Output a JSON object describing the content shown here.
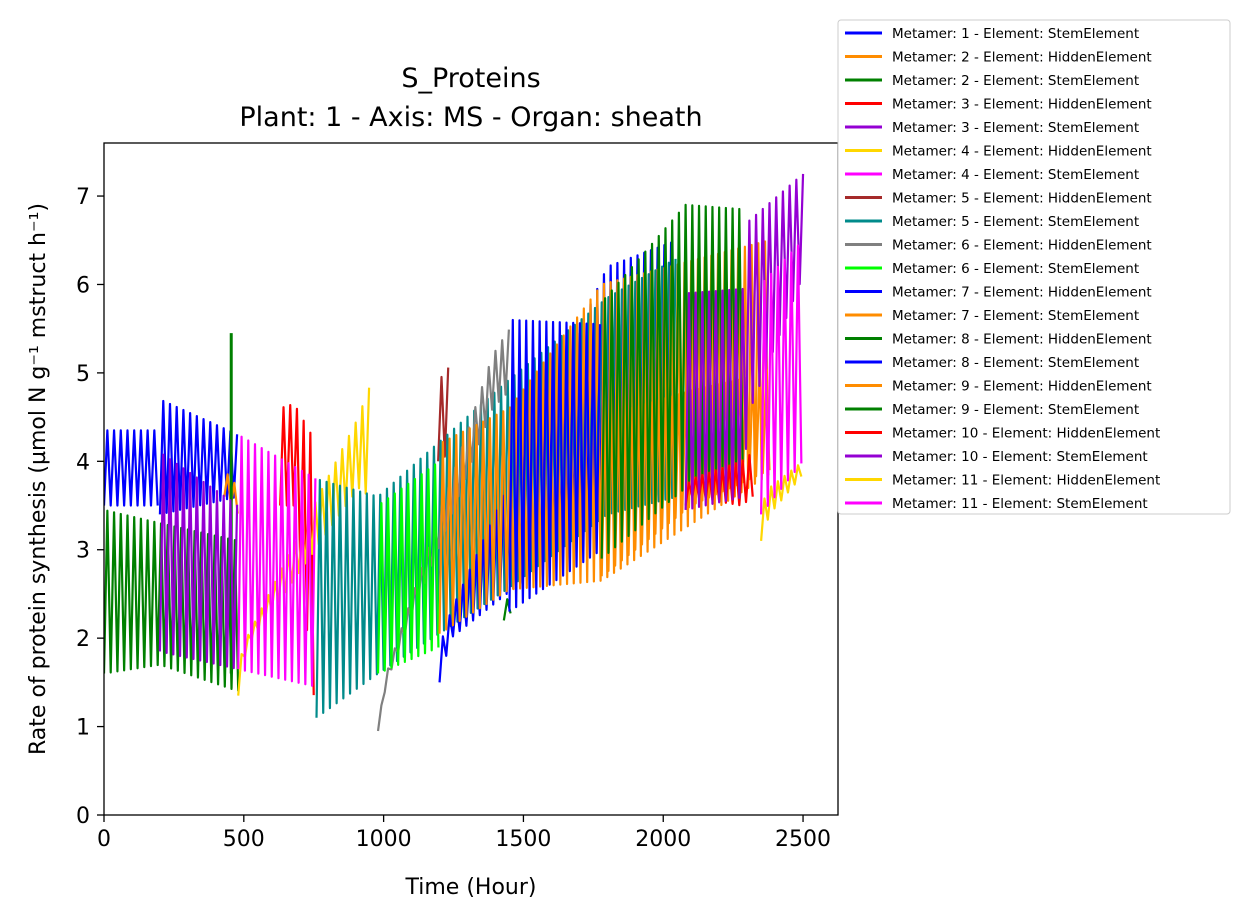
{
  "chart_data": {
    "type": "line",
    "title": "S_Proteins",
    "subtitle": "Plant: 1 - Axis: MS - Organ: sheath",
    "xlabel": "Time (Hour)",
    "ylabel": "Rate of protein synthesis (µmol N g⁻¹ mstruct h⁻¹)",
    "xlim": [
      0,
      2625
    ],
    "ylim": [
      0,
      7.6
    ],
    "xticks": [
      0,
      500,
      1000,
      1500,
      2000,
      2500
    ],
    "yticks": [
      0,
      1,
      2,
      3,
      4,
      5,
      6,
      7
    ],
    "grid": false,
    "legend_position": "outside-top-right",
    "series": [
      {
        "name": "Metamer: 1 - Element: StemElement",
        "color": "#0000ff",
        "x": [
          0,
          200
        ],
        "low": [
          3.5,
          3.5
        ],
        "high": [
          4.35,
          4.35
        ],
        "x2": [
          200,
          480
        ],
        "low2": [
          3.4,
          3.6
        ],
        "high2": [
          4.7,
          4.3
        ]
      },
      {
        "name": "Metamer: 2 - Element: HiddenElement",
        "color": "#ff8c00",
        "x": [
          430,
          480
        ],
        "low": [
          3.6,
          3.4
        ],
        "high": [
          3.9,
          3.7
        ]
      },
      {
        "name": "Metamer: 2 - Element: StemElement",
        "color": "#008000",
        "x": [
          0,
          200,
          480
        ],
        "low": [
          1.6,
          1.7,
          1.4
        ],
        "high": [
          3.45,
          3.3,
          3.1
        ],
        "spike_x": 455,
        "spike_y": 5.45
      },
      {
        "name": "Metamer: 3 - Element: HiddenElement",
        "color": "#ff0000",
        "x": [
          630,
          680,
          760
        ],
        "low": [
          3.5,
          3.5,
          1.05
        ],
        "high": [
          4.6,
          4.65,
          4.2
        ]
      },
      {
        "name": "Metamer: 3 - Element: StemElement",
        "color": "#9400d3",
        "x": [
          200,
          480
        ],
        "low": [
          1.85,
          1.65
        ],
        "high": [
          4.1,
          3.5
        ]
      },
      {
        "name": "Metamer: 4 - Element: HiddenElement",
        "color": "#ffd700",
        "x": [
          480,
          510,
          910,
          950
        ],
        "low": [
          1.35,
          1.9,
          3.7,
          3.6
        ],
        "high": [
          1.7,
          2.0,
          4.5,
          4.85
        ]
      },
      {
        "name": "Metamer: 4 - Element: StemElement",
        "color": "#ff00ff",
        "x": [
          480,
          760
        ],
        "low": [
          1.65,
          1.45
        ],
        "high": [
          4.3,
          3.8
        ]
      },
      {
        "name": "Metamer: 5 - Element: HiddenElement",
        "color": "#a52a2a",
        "x": [
          1195,
          1240
        ],
        "low": [
          4.0,
          4.1
        ],
        "high": [
          4.9,
          5.1
        ]
      },
      {
        "name": "Metamer: 5 - Element: StemElement",
        "color": "#008b8b",
        "x": [
          760,
          980,
          1440,
          1800,
          2050
        ],
        "low": [
          1.1,
          1.6,
          2.55,
          3.4,
          3.6
        ],
        "high": [
          3.8,
          3.6,
          4.9,
          5.85,
          6.3
        ]
      },
      {
        "name": "Metamer: 6 - Element: HiddenElement",
        "color": "#808080",
        "x": [
          980,
          1010,
          1390,
          1450
        ],
        "low": [
          0.95,
          1.5,
          4.6,
          4.8
        ],
        "high": [
          1.0,
          1.6,
          5.2,
          5.5
        ]
      },
      {
        "name": "Metamer: 6 - Element: StemElement",
        "color": "#00ff00",
        "x": [
          980,
          1200
        ],
        "low": [
          1.6,
          1.9
        ],
        "high": [
          3.5,
          4.0
        ]
      },
      {
        "name": "Metamer: 7 - Element: HiddenElement",
        "color": "#0000ff",
        "x": [
          1200,
          1240,
          1800,
          2050
        ],
        "low": [
          1.5,
          2.0,
          3.4,
          3.6
        ],
        "high": [
          1.9,
          2.3,
          6.2,
          6.5
        ]
      },
      {
        "name": "Metamer: 7 - Element: StemElement",
        "color": "#ff8c00",
        "x": [
          1200,
          1450,
          1780,
          2380
        ],
        "low": [
          2.05,
          2.55,
          2.65,
          3.85
        ],
        "high": [
          4.2,
          4.6,
          6.0,
          6.5
        ]
      },
      {
        "name": "Metamer: 8 - Element: HiddenElement",
        "color": "#008000",
        "x": [
          1430,
          1460
        ],
        "low": [
          2.2,
          2.3
        ],
        "high": [
          2.4,
          2.5
        ]
      },
      {
        "name": "Metamer: 8 - Element: StemElement",
        "color": "#0000ff",
        "x": [
          1450,
          1780
        ],
        "low": [
          2.3,
          3.0
        ],
        "high": [
          5.6,
          5.55
        ]
      },
      {
        "name": "Metamer: 9 - Element: HiddenElement",
        "color": "#ff8c00",
        "x": [
          1780,
          2100,
          2380
        ],
        "low": [
          2.7,
          3.5,
          3.9
        ],
        "high": [
          4.5,
          4.8,
          5.0
        ]
      },
      {
        "name": "Metamer: 9 - Element: StemElement",
        "color": "#008000",
        "x": [
          1780,
          2080,
          2290
        ],
        "low": [
          2.9,
          3.7,
          4.0
        ],
        "high": [
          5.8,
          6.9,
          6.85
        ]
      },
      {
        "name": "Metamer: 10 - Element: HiddenElement",
        "color": "#ff0000",
        "x": [
          2080,
          2100,
          2280,
          2320
        ],
        "low": [
          3.5,
          3.6,
          3.5,
          3.6
        ],
        "high": [
          3.7,
          3.8,
          4.0,
          4.1
        ]
      },
      {
        "name": "Metamer: 10 - Element: StemElement",
        "color": "#9400d3",
        "x": [
          2080,
          2290,
          2300,
          2500
        ],
        "low": [
          3.45,
          3.6,
          4.5,
          6.1
        ],
        "high": [
          5.9,
          5.95,
          6.7,
          7.25
        ]
      },
      {
        "name": "Metamer: 11 - Element: HiddenElement",
        "color": "#ffd700",
        "x": [
          2350,
          2380,
          2500
        ],
        "low": [
          3.1,
          3.4,
          3.85
        ],
        "high": [
          3.5,
          3.7,
          4.0
        ]
      },
      {
        "name": "Metamer: 11 - Element: StemElement",
        "color": "#ff00ff",
        "x": [
          2350,
          2500
        ],
        "low": [
          3.4,
          4.0
        ],
        "high": [
          6.0,
          6.5
        ]
      }
    ]
  }
}
